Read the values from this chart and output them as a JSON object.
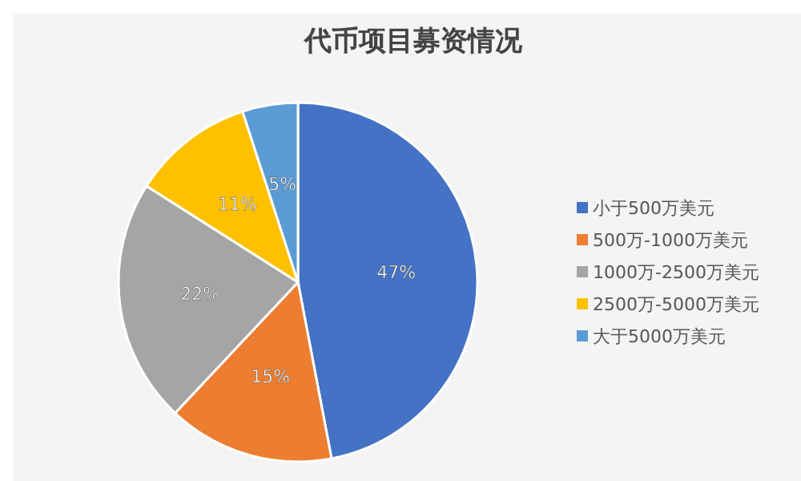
{
  "chart_data": {
    "type": "pie",
    "title": "代币项目募资情况",
    "categories": [
      "小于500万美元",
      "500万-1000万美元",
      "1000万-2500万美元",
      "2500万-5000万美元",
      "大于5000万美元"
    ],
    "values": [
      47,
      15,
      22,
      11,
      5
    ],
    "value_labels": [
      "47%",
      "15%",
      "22%",
      "11%",
      "5%"
    ],
    "colors": [
      "#4472c4",
      "#ed7d31",
      "#a5a5a5",
      "#ffc000",
      "#5b9bd5"
    ],
    "legend": "right"
  }
}
